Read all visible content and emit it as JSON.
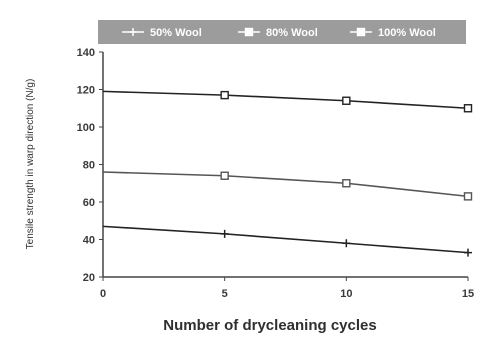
{
  "chart_data": {
    "type": "line",
    "title": "",
    "xlabel": "Number of drycleaning cycles",
    "ylabel": "Tensile strength in warp direction (N/g)",
    "x": [
      0,
      5,
      10,
      15
    ],
    "xlim": [
      0,
      15
    ],
    "ylim": [
      20,
      140
    ],
    "xticks": [
      0,
      5,
      10,
      15
    ],
    "yticks": [
      20,
      40,
      60,
      80,
      100,
      120,
      140
    ],
    "grid": false,
    "legend_position": "top",
    "series": [
      {
        "name": "50% Wool",
        "values": [
          47,
          43,
          38,
          33
        ],
        "marker": "plus",
        "color": "#222222"
      },
      {
        "name": "80% Wool",
        "values": [
          76,
          74,
          70,
          63
        ],
        "marker": "square",
        "color": "#555555"
      },
      {
        "name": "100% Wool",
        "values": [
          119,
          117,
          114,
          110
        ],
        "marker": "square",
        "color": "#222222"
      }
    ]
  }
}
